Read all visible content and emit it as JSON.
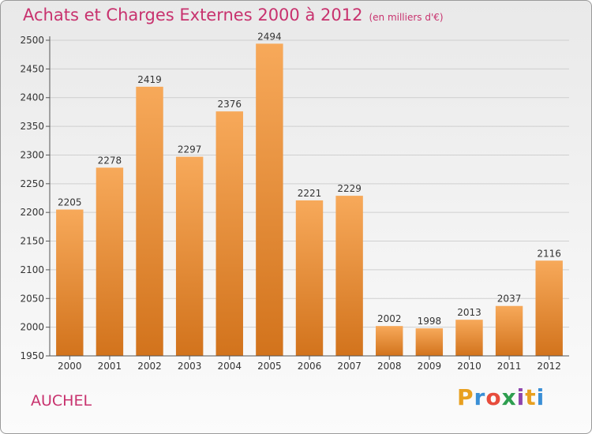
{
  "title": "Achats et Charges Externes 2000 à 2012",
  "subtitle": "(en milliers d'€)",
  "city": "AUCHEL",
  "logo": {
    "text": "Proxiti",
    "letters": [
      "P",
      "r",
      "o",
      "x",
      "i",
      "t",
      "i"
    ],
    "colors": [
      "#e8a020",
      "#3a8fd6",
      "#e74c3c",
      "#2e9e4f",
      "#8e44ad",
      "#e8a020",
      "#3a8fd6"
    ]
  },
  "chart_data": {
    "type": "bar",
    "title": "Achats et Charges Externes 2000 à 2012",
    "subtitle": "(en milliers d'€)",
    "categories": [
      "2000",
      "2001",
      "2002",
      "2003",
      "2004",
      "2005",
      "2006",
      "2007",
      "2008",
      "2009",
      "2010",
      "2011",
      "2012"
    ],
    "values": [
      2205,
      2278,
      2419,
      2297,
      2376,
      2494,
      2221,
      2229,
      2002,
      1998,
      2013,
      2037,
      2116
    ],
    "ylim": [
      1950,
      2500
    ],
    "yticks": [
      1950,
      2000,
      2050,
      2100,
      2150,
      2200,
      2250,
      2300,
      2350,
      2400,
      2450,
      2500
    ],
    "grid": true,
    "bar_color_top": "#f7a95a",
    "bar_color_bottom": "#d2731c"
  }
}
